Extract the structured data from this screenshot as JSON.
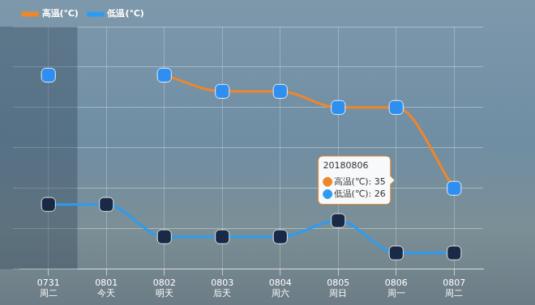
{
  "chart_data": {
    "type": "line",
    "categories": [
      "0731",
      "0801",
      "0802",
      "0803",
      "0804",
      "0805",
      "0806",
      "0807"
    ],
    "sublabels": [
      "周二",
      "今天",
      "明天",
      "后天",
      "周六",
      "周日",
      "周一",
      "周二"
    ],
    "series": [
      {
        "name": "高温(℃)",
        "color": "#f0862a",
        "marker": "square",
        "values": [
          37,
          null,
          37,
          36,
          36,
          35,
          35,
          30
        ]
      },
      {
        "name": "低温(℃)",
        "color": "#2d9cf0",
        "marker": "square",
        "values": [
          29,
          29,
          27,
          27,
          27,
          28,
          26,
          26
        ]
      }
    ],
    "ylim": [
      25,
      40
    ],
    "yticks": [
      25,
      27.5,
      30,
      32.5,
      35,
      37.5,
      40
    ],
    "grid": true,
    "legend": "top-left",
    "tick_labels": "x",
    "annotation": {
      "x": "0806",
      "text": "20180806"
    }
  }
}
